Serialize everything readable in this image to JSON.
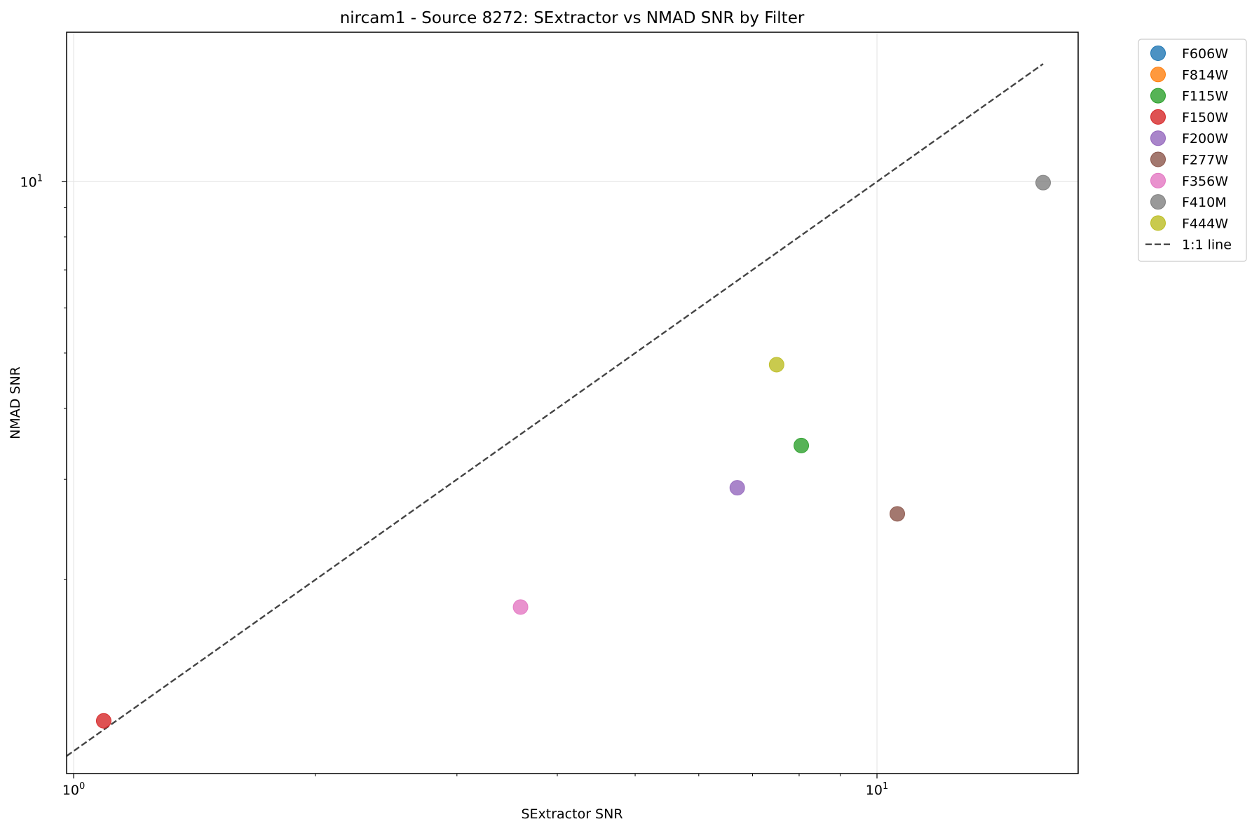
{
  "chart_data": {
    "type": "scatter",
    "title": "nircam1 - Source 8272: SExtractor vs NMAD SNR by Filter",
    "xlabel": "SExtractor SNR",
    "ylabel": "NMAD SNR",
    "xscale": "log",
    "yscale": "log",
    "xlim": [
      0.98,
      17.8
    ],
    "ylim": [
      0.913,
      18.3
    ],
    "xticks": [
      {
        "value": 1,
        "base": "10",
        "exp": "0"
      },
      {
        "value": 10,
        "base": "10",
        "exp": "1"
      }
    ],
    "yticks": [
      {
        "value": 10,
        "base": "10",
        "exp": "1"
      }
    ],
    "grid": true,
    "legend_position": "outside-top-right",
    "series": [
      {
        "name": "F606W",
        "color": "#1f77b4",
        "points": []
      },
      {
        "name": "F814W",
        "color": "#ff7f0e",
        "points": []
      },
      {
        "name": "F115W",
        "color": "#2ca02c",
        "points": [
          {
            "x": 8.05,
            "y": 3.44
          }
        ]
      },
      {
        "name": "F150W",
        "color": "#d62728",
        "points": [
          {
            "x": 1.09,
            "y": 1.13
          }
        ]
      },
      {
        "name": "F200W",
        "color": "#9467bd",
        "points": [
          {
            "x": 6.7,
            "y": 2.9
          }
        ]
      },
      {
        "name": "F277W",
        "color": "#8c564b",
        "points": [
          {
            "x": 10.6,
            "y": 2.61
          }
        ]
      },
      {
        "name": "F356W",
        "color": "#e377c2",
        "points": [
          {
            "x": 3.6,
            "y": 1.79
          }
        ]
      },
      {
        "name": "F410M",
        "color": "#7f7f7f",
        "points": [
          {
            "x": 16.1,
            "y": 9.96
          }
        ]
      },
      {
        "name": "F444W",
        "color": "#bcbd22",
        "points": [
          {
            "x": 7.5,
            "y": 4.77
          }
        ]
      }
    ],
    "reference_line": {
      "name": "1:1 line",
      "color": "#444444",
      "style": "dashed",
      "x": [
        0.9,
        16.1
      ],
      "y": [
        0.9,
        16.1
      ]
    }
  }
}
